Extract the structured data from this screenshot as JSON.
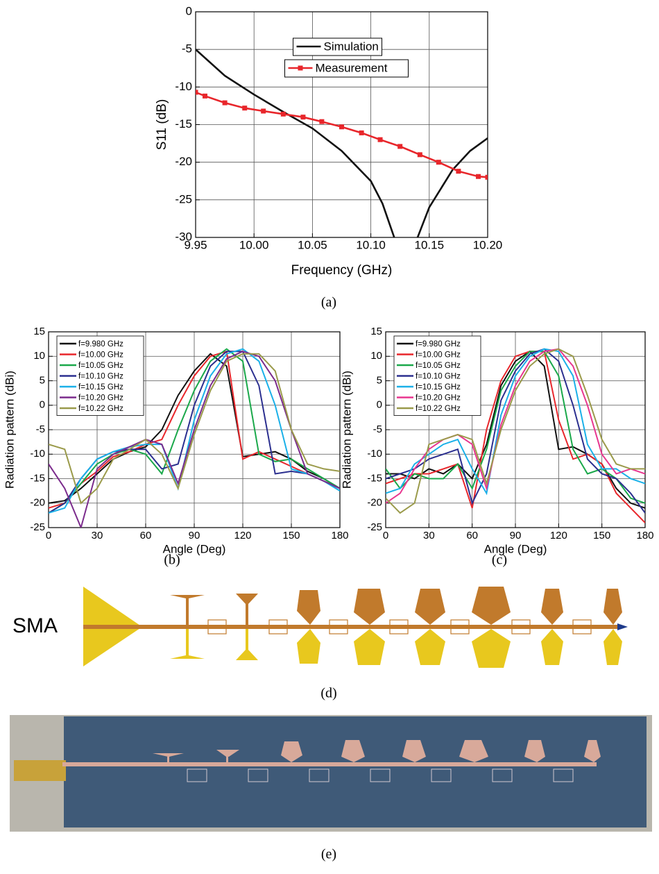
{
  "chart_data": [
    {
      "type": "line",
      "xlabel": "Frequency (GHz)",
      "ylabel": "S11 (dB)",
      "xlim": [
        9.95,
        10.2
      ],
      "ylim": [
        -30,
        0
      ],
      "xticks": [
        9.95,
        {
          "value": 10,
          "label": "10.00"
        },
        10.05,
        {
          "value": 10.1,
          "label": "10.10"
        },
        10.15,
        {
          "value": 10.2,
          "label": "10.20"
        }
      ],
      "yticks": [
        -30,
        -25,
        -20,
        -15,
        -10,
        -5,
        0
      ],
      "grid": true,
      "legend": "upper center",
      "series": [
        {
          "name": "Simulation",
          "color": "#111111",
          "x": [
            9.95,
            9.975,
            10.0,
            10.025,
            10.05,
            10.075,
            10.1,
            10.11,
            10.12,
            10.13,
            10.14,
            10.15,
            10.17,
            10.185,
            10.2
          ],
          "values": [
            -5,
            -8.5,
            -11,
            -13.3,
            -15.5,
            -18.5,
            -22.5,
            -25.5,
            -30,
            null,
            -30,
            -26,
            -21,
            -18.5,
            -16.8
          ]
        },
        {
          "name": "Measurement",
          "color": "#e8262b",
          "marker": "square",
          "x": [
            9.95,
            9.958,
            9.975,
            9.992,
            10.008,
            10.025,
            10.042,
            10.058,
            10.075,
            10.092,
            10.108,
            10.125,
            10.142,
            10.158,
            10.175,
            10.192,
            10.2
          ],
          "values": [
            -10.7,
            -11.2,
            -12.1,
            -12.8,
            -13.2,
            -13.6,
            -14.0,
            -14.6,
            -15.3,
            -16.1,
            -17.0,
            -17.9,
            -19.0,
            -20.0,
            -21.2,
            -21.9,
            -22.0
          ]
        }
      ]
    },
    {
      "type": "line",
      "xlabel": "Angle (Deg)",
      "ylabel": "Radiation pattern (dBi)",
      "xlim": [
        0,
        180
      ],
      "ylim": [
        -25,
        15
      ],
      "xticks": [
        0,
        30,
        60,
        90,
        120,
        150,
        180
      ],
      "yticks": [
        -25,
        -20,
        -15,
        -10,
        -5,
        0,
        5,
        10,
        15
      ],
      "grid": true,
      "legend": "upper left",
      "x": [
        0,
        10,
        20,
        30,
        40,
        50,
        60,
        70,
        80,
        90,
        100,
        110,
        120,
        130,
        140,
        150,
        160,
        170,
        180
      ],
      "series": [
        {
          "name": "f=9.980 GHz",
          "color": "#111111",
          "values": [
            -20,
            -19.5,
            -17,
            -14,
            -11,
            -9.5,
            -8.5,
            -5,
            2,
            7,
            10.5,
            8,
            -10.5,
            -10,
            -9.5,
            -11,
            -13.5,
            -15,
            -17
          ]
        },
        {
          "name": "f=10.00 GHz",
          "color": "#e8262b",
          "values": [
            -21,
            -20,
            -16,
            -13.5,
            -10.5,
            -9.5,
            -8,
            -7,
            0,
            6,
            10,
            11,
            -11,
            -9.5,
            -11,
            -12.5,
            -14,
            -15.5,
            -17
          ]
        },
        {
          "name": "f=10.05 GHz",
          "color": "#1aa84a",
          "values": [
            -22,
            -20,
            -16,
            -12,
            -10,
            -9,
            -10,
            -14,
            -5,
            3,
            9,
            11.5,
            9,
            -10,
            -11.5,
            -11,
            -13,
            -15,
            -17
          ]
        },
        {
          "name": "f=10.10 GHz",
          "color": "#2b2f8f",
          "values": [
            -22,
            -20,
            -15,
            -11,
            -9.5,
            -9,
            -9,
            -13,
            -12,
            0,
            8,
            11,
            11,
            4,
            -14,
            -13.5,
            -14,
            -15.5,
            -17
          ]
        },
        {
          "name": "f=10.15 GHz",
          "color": "#1ab0e8",
          "values": [
            -22,
            -21,
            -15,
            -11,
            -9.5,
            -8.5,
            -8,
            -8,
            -17,
            -3,
            6,
            10.5,
            11.5,
            9,
            0,
            -13,
            -14,
            -15.5,
            -17.5
          ]
        },
        {
          "name": "f=10.20 GHz",
          "color": "#7b2b8c",
          "values": [
            -12,
            -17,
            -25,
            -13,
            -10,
            -8.5,
            -7,
            -8,
            -16,
            -5,
            4,
            9.5,
            11,
            10,
            5,
            -5,
            -14,
            -15.5,
            -17
          ]
        },
        {
          "name": "f=10.22 GHz",
          "color": "#9a9a4a",
          "values": [
            -8,
            -9,
            -20,
            -17,
            -11,
            -9,
            -7,
            -10,
            -17,
            -6,
            3,
            9,
            10.5,
            10.5,
            7,
            -5,
            -12,
            -13,
            -13.5
          ]
        }
      ]
    },
    {
      "type": "line",
      "xlabel": "Angle (Deg)",
      "ylabel": "Radiation pattern (dBi)",
      "xlim": [
        0,
        180
      ],
      "ylim": [
        -25,
        15
      ],
      "xticks": [
        0,
        30,
        60,
        90,
        120,
        150,
        180
      ],
      "yticks": [
        -25,
        -20,
        -15,
        -10,
        -5,
        0,
        5,
        10,
        15
      ],
      "grid": true,
      "legend": "upper left",
      "x": [
        0,
        10,
        20,
        30,
        40,
        50,
        60,
        70,
        80,
        90,
        100,
        110,
        120,
        130,
        140,
        150,
        160,
        170,
        180
      ],
      "series": [
        {
          "name": "f=9.980 GHz",
          "color": "#111111",
          "values": [
            -14,
            -14,
            -15,
            -13,
            -14,
            -12,
            -15,
            -8,
            4,
            9,
            11,
            8,
            -9,
            -8.5,
            -10,
            -12,
            -17,
            -20,
            -21
          ]
        },
        {
          "name": "f=10.00 GHz",
          "color": "#e8262b",
          "values": [
            -16,
            -15,
            -14,
            -14,
            -13,
            -12,
            -21,
            -5,
            5,
            10,
            11,
            11,
            -3,
            -11,
            -10,
            -12,
            -18,
            -21,
            -24
          ]
        },
        {
          "name": "f=10.05 GHz",
          "color": "#1aa84a",
          "values": [
            -13,
            -17,
            -14,
            -15,
            -15,
            -12,
            -17,
            -9,
            3,
            8,
            11,
            11,
            6,
            -9,
            -14,
            -13,
            -15,
            -19,
            -20
          ]
        },
        {
          "name": "f=10.10 GHz",
          "color": "#2b2f8f",
          "values": [
            -15,
            -14,
            -13,
            -11,
            -10,
            -9,
            -20,
            -14,
            1,
            7,
            10.5,
            11.5,
            9,
            0,
            -11,
            -14,
            -15,
            -18,
            -22
          ]
        },
        {
          "name": "f=10.15 GHz",
          "color": "#1ab0e8",
          "values": [
            -18,
            -17,
            -12,
            -10,
            -8,
            -7,
            -13,
            -18,
            -2,
            6,
            10,
            11.5,
            11,
            6,
            -8,
            -13,
            -13,
            -15,
            -16
          ]
        },
        {
          "name": "f=10.20 GHz",
          "color": "#e8368f",
          "values": [
            -20,
            -18,
            -13,
            -9,
            -7,
            -6,
            -8,
            -17,
            -4,
            4,
            9,
            11,
            11.5,
            8,
            0,
            -10,
            -14,
            -13,
            -14
          ]
        },
        {
          "name": "f=10.22 GHz",
          "color": "#9a9a4a",
          "values": [
            -19,
            -22,
            -20,
            -8,
            -7,
            -6,
            -7,
            -16,
            -5,
            3,
            8,
            10.5,
            11.5,
            10,
            2,
            -7,
            -12,
            -13,
            -13
          ]
        }
      ]
    }
  ],
  "panel_labels": [
    "(a)",
    "(b)",
    "(c)",
    "(d)",
    "(e)"
  ],
  "diagram": {
    "label": "SMA"
  }
}
